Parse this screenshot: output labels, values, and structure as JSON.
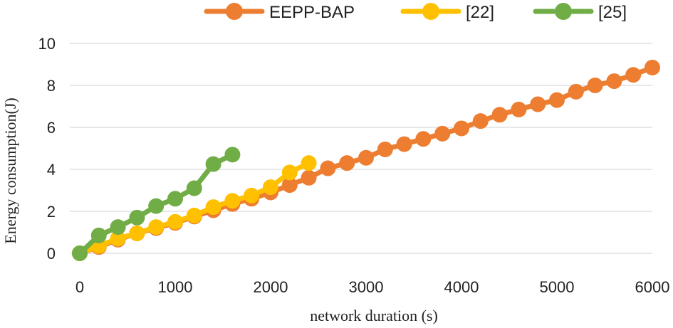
{
  "chart_data": {
    "type": "line",
    "title": "",
    "xlabel": "network duration (s)",
    "ylabel": "Energy consumption(J)",
    "xlim": [
      0,
      6000
    ],
    "ylim": [
      0,
      10
    ],
    "x_ticks": [
      0,
      1000,
      2000,
      3000,
      4000,
      5000,
      6000
    ],
    "y_ticks": [
      0,
      2,
      4,
      6,
      8,
      10
    ],
    "x_tick_labels": [
      "0",
      "1000",
      "2000",
      "3000",
      "4000",
      "5000",
      "6000"
    ],
    "y_tick_labels": [
      "0",
      "2",
      "4",
      "6",
      "8",
      "10"
    ],
    "grid": "horizontal",
    "legend_position": "top",
    "series": [
      {
        "name": "EEPP-BAP",
        "color": "#ED7D31",
        "x": [
          0,
          200,
          400,
          600,
          800,
          1000,
          1200,
          1400,
          1600,
          1800,
          2000,
          2200,
          2400,
          2600,
          2800,
          3000,
          3200,
          3400,
          3600,
          3800,
          4000,
          4200,
          4400,
          4600,
          4800,
          5000,
          5200,
          5400,
          5600,
          5800,
          6000
        ],
        "y": [
          0,
          0.3,
          0.65,
          0.95,
          1.2,
          1.45,
          1.75,
          2.05,
          2.35,
          2.6,
          2.9,
          3.25,
          3.6,
          4.05,
          4.3,
          4.55,
          4.95,
          5.2,
          5.45,
          5.7,
          5.95,
          6.3,
          6.6,
          6.85,
          7.1,
          7.3,
          7.7,
          8.0,
          8.2,
          8.5,
          8.85
        ]
      },
      {
        "name": "[22]",
        "color": "#FFC000",
        "x": [
          0,
          200,
          400,
          600,
          800,
          1000,
          1200,
          1400,
          1600,
          1800,
          2000,
          2200,
          2400
        ],
        "y": [
          0,
          0.35,
          0.7,
          0.95,
          1.25,
          1.5,
          1.8,
          2.2,
          2.5,
          2.75,
          3.15,
          3.85,
          4.3
        ]
      },
      {
        "name": "[25]",
        "color": "#70AD47",
        "x": [
          0,
          200,
          400,
          600,
          800,
          1000,
          1200,
          1400,
          1600
        ],
        "y": [
          0,
          0.85,
          1.25,
          1.7,
          2.25,
          2.6,
          3.1,
          4.25,
          4.7
        ]
      }
    ]
  }
}
